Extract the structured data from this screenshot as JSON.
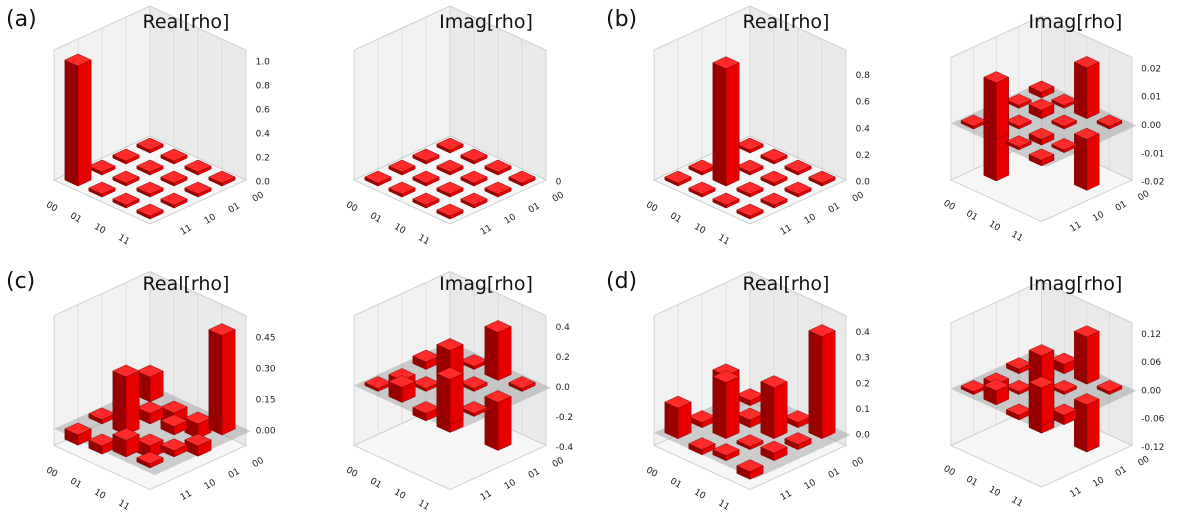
{
  "palette": {
    "bar_top": "#ff2a2a",
    "bar_side_light": "#e60000",
    "bar_side_dark": "#9a0000",
    "pane_fill": "#f1f1f1",
    "zero_plane": "#9a9a9a"
  },
  "chart_data": [
    {
      "panel_label": "(a)",
      "title": "Real[rho]",
      "type": "bar3d",
      "x_ticks": [
        "00",
        "01",
        "10",
        "11"
      ],
      "y_ticks": [
        "00",
        "01",
        "10",
        "11"
      ],
      "z_ticks": [
        "0.0",
        "0.2",
        "0.4",
        "0.6",
        "0.8",
        "1.0"
      ],
      "zlim": [
        0,
        1.0
      ],
      "values": [
        [
          1,
          0,
          0,
          0
        ],
        [
          0,
          0,
          0,
          0
        ],
        [
          0,
          0,
          0,
          0
        ],
        [
          0,
          0,
          0,
          0
        ]
      ]
    },
    {
      "panel_label": "",
      "title": "Imag[rho]",
      "type": "bar3d",
      "x_ticks": [
        "00",
        "01",
        "10",
        "11"
      ],
      "y_ticks": [
        "00",
        "01",
        "10",
        "11"
      ],
      "z_ticks": [
        "0"
      ],
      "zlim": [
        0,
        1.0
      ],
      "values": [
        [
          0,
          0,
          0,
          0
        ],
        [
          0,
          0,
          0,
          0
        ],
        [
          0,
          0,
          0,
          0
        ],
        [
          0,
          0,
          0,
          0
        ]
      ]
    },
    {
      "panel_label": "(b)",
      "title": "Real[rho]",
      "type": "bar3d",
      "x_ticks": [
        "00",
        "01",
        "10",
        "11"
      ],
      "y_ticks": [
        "00",
        "01",
        "10",
        "11"
      ],
      "z_ticks": [
        "0.0",
        "0.2",
        "0.4",
        "0.6",
        "0.8"
      ],
      "zlim": [
        0,
        0.9
      ],
      "values": [
        [
          0.02,
          0,
          0,
          0
        ],
        [
          0,
          0.88,
          0,
          0
        ],
        [
          0,
          0.01,
          0.01,
          0
        ],
        [
          0,
          0,
          0,
          0
        ]
      ]
    },
    {
      "panel_label": "",
      "title": "Imag[rho]",
      "type": "bar3d",
      "x_ticks": [
        "00",
        "01",
        "10",
        "11"
      ],
      "y_ticks": [
        "00",
        "01",
        "10",
        "11"
      ],
      "z_ticks": [
        "-0.02",
        "-0.01",
        "0.00",
        "0.01",
        "0.02"
      ],
      "zlim": [
        -0.02,
        0.02
      ],
      "values": [
        [
          0,
          -0.022,
          0.001,
          0.002
        ],
        [
          0.02,
          0,
          0.003,
          0.001
        ],
        [
          0,
          -0.002,
          0,
          0.018
        ],
        [
          -0.002,
          -0.001,
          -0.018,
          0
        ]
      ]
    },
    {
      "panel_label": "(c)",
      "title": "Real[rho]",
      "type": "bar3d",
      "x_ticks": [
        "00",
        "01",
        "10",
        "11"
      ],
      "y_ticks": [
        "00",
        "01",
        "10",
        "11"
      ],
      "z_ticks": [
        "0.00",
        "0.15",
        "0.30",
        "0.45"
      ],
      "zlim": [
        -0.08,
        0.5
      ],
      "values": [
        [
          -0.05,
          0.02,
          0.03,
          0.12
        ],
        [
          -0.04,
          0.28,
          0.05,
          -0.08
        ],
        [
          0.08,
          -0.06,
          0.04,
          -0.07
        ],
        [
          0.02,
          0.03,
          -0.05,
          0.48
        ]
      ]
    },
    {
      "panel_label": "",
      "title": "Imag[rho]",
      "type": "bar3d",
      "x_ticks": [
        "00",
        "01",
        "10",
        "11"
      ],
      "y_ticks": [
        "00",
        "01",
        "10",
        "11"
      ],
      "z_ticks": [
        "-0.4",
        "-0.2",
        "0.0",
        "0.2",
        "0.4"
      ],
      "zlim": [
        -0.4,
        0.4
      ],
      "values": [
        [
          0,
          -0.1,
          0.05,
          -0.3
        ],
        [
          0.1,
          0,
          0.2,
          0.02
        ],
        [
          -0.05,
          -0.2,
          0,
          0.32
        ],
        [
          0.3,
          -0.02,
          -0.32,
          0
        ]
      ]
    },
    {
      "panel_label": "(d)",
      "title": "Real[rho]",
      "type": "bar3d",
      "x_ticks": [
        "00",
        "01",
        "10",
        "11"
      ],
      "y_ticks": [
        "00",
        "01",
        "10",
        "11"
      ],
      "z_ticks": [
        "0.0",
        "0.1",
        "0.2",
        "0.3",
        "0.4"
      ],
      "zlim": [
        -0.05,
        0.42
      ],
      "values": [
        [
          0.12,
          0.02,
          0.16,
          0.02
        ],
        [
          -0.02,
          0.22,
          0.03,
          -0.03
        ],
        [
          0.02,
          0.01,
          0.2,
          0.02
        ],
        [
          -0.03,
          0.03,
          0.02,
          0.4
        ]
      ]
    },
    {
      "panel_label": "",
      "title": "Imag[rho]",
      "type": "bar3d",
      "x_ticks": [
        "00",
        "01",
        "10",
        "11"
      ],
      "y_ticks": [
        "00",
        "01",
        "10",
        "11"
      ],
      "z_ticks": [
        "-0.12",
        "-0.06",
        "0.00",
        "0.06",
        "0.12"
      ],
      "zlim": [
        -0.12,
        0.12
      ],
      "values": [
        [
          0,
          -0.03,
          0.01,
          -0.08
        ],
        [
          0.03,
          0,
          0.06,
          0.02
        ],
        [
          -0.01,
          -0.06,
          0,
          0.1
        ],
        [
          0.08,
          -0.02,
          -0.1,
          0
        ]
      ]
    }
  ]
}
